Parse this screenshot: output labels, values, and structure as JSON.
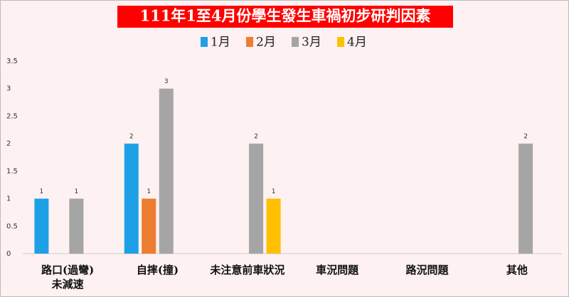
{
  "chart_data": {
    "type": "bar",
    "title": "111年1至4月份學生發生車禍初步研判因素",
    "categories": [
      "路口(過彎)\n未減速",
      "自摔(撞)",
      "未注意前車狀況",
      "車況問題",
      "路況問題",
      "其他"
    ],
    "series": [
      {
        "name": "1月",
        "color": "#1ea0e6",
        "values": [
          1,
          2,
          0,
          0,
          0,
          0
        ]
      },
      {
        "name": "2月",
        "color": "#ed7d31",
        "values": [
          0,
          1,
          0,
          0,
          0,
          0
        ]
      },
      {
        "name": "3月",
        "color": "#a5a5a5",
        "values": [
          1,
          3,
          2,
          0,
          0,
          2
        ]
      },
      {
        "name": "4月",
        "color": "#ffc000",
        "values": [
          0,
          0,
          1,
          0,
          0,
          0
        ]
      }
    ],
    "ylim": [
      0,
      3.5
    ],
    "yticks": [
      0,
      0.5,
      1,
      1.5,
      2,
      2.5,
      3,
      3.5
    ],
    "grid": false,
    "legend": "top"
  }
}
